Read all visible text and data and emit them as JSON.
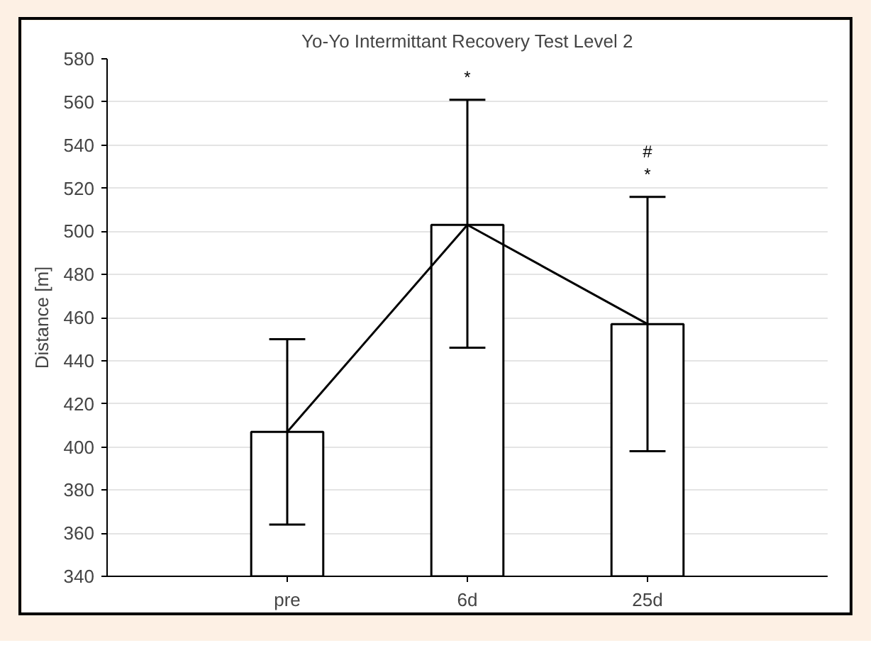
{
  "chart_data": {
    "type": "bar",
    "title": "Yo-Yo Intermittant Recovery Test Level 2",
    "ylabel": "Distance [m]",
    "categories": [
      "pre",
      "6d",
      "25d"
    ],
    "series": [
      {
        "color": "#ffffff",
        "values": [
          407,
          503,
          457
        ],
        "errors": [
          [
            364,
            450
          ],
          [
            446,
            561
          ],
          [
            398,
            516
          ]
        ]
      },
      {
        "type": "line",
        "color": "#000000",
        "values": [
          407,
          503,
          457
        ]
      }
    ],
    "ylim": [
      340,
      580
    ],
    "yticks": [
      340,
      360,
      380,
      400,
      420,
      440,
      460,
      480,
      500,
      520,
      540,
      560,
      580
    ],
    "grid": "y",
    "annotations": [
      {
        "text": "*",
        "x": "6d",
        "y": 561
      },
      {
        "text": "*",
        "x": "25d",
        "y": 516
      },
      {
        "text": "#",
        "x": "25d",
        "y": 516
      }
    ]
  }
}
